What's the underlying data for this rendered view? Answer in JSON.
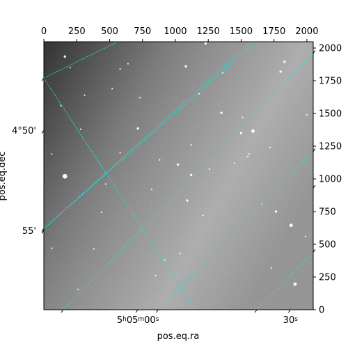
{
  "chart_data": {
    "type": "image",
    "image_kind": "grayscale astronomical sky image with equatorial coordinate grid overlay",
    "colors": {
      "grid": "#17e6d8",
      "background_low": "#303030",
      "background_high": "#b4b4b4",
      "frame": "#000000"
    },
    "pixel_axes": {
      "x_ticks": [
        0,
        250,
        500,
        750,
        1000,
        1250,
        1500,
        1750,
        2000
      ],
      "x_tick_labels": [
        "0",
        "250",
        "500",
        "750",
        "1000",
        "1250",
        "1500",
        "1750",
        "2000"
      ],
      "y_ticks": [
        0,
        250,
        500,
        750,
        1000,
        1250,
        1500,
        1750,
        2000
      ],
      "y_tick_labels": [
        "0",
        "250",
        "500",
        "750",
        "1000",
        "1250",
        "1500",
        "1750",
        "2000"
      ],
      "xlim": [
        0,
        2048
      ],
      "ylim": [
        0,
        2048
      ]
    },
    "world_axes": {
      "xlabel": "pos.eq.ra",
      "ylabel": "pos.eq.dec",
      "ra_tick_labels": [
        {
          "h": "5",
          "m": "05",
          "s": "00",
          "pix_x": 715
        },
        {
          "h": "",
          "m": "",
          "s": "30",
          "pix_x": 1875
        }
      ],
      "dec_tick_labels": [
        {
          "text": "4°50'",
          "pix_y": 1370
        },
        {
          "text": "55'",
          "pix_y": 605
        }
      ]
    },
    "grid_lines": {
      "ra_lines": [
        [
          [
            148,
            0
          ],
          [
            2048,
            1960
          ]
        ],
        [
          [
            870,
            0
          ],
          [
            2048,
            1210
          ]
        ],
        [
          [
            1620,
            0
          ],
          [
            2048,
            440
          ]
        ]
      ],
      "dec_lines": [
        [
          [
            0,
            1770
          ],
          [
            1150,
            0
          ]
        ],
        [
          [
            0,
            620
          ],
          [
            1620,
            2048
          ]
        ],
        [
          [
            0,
            1770
          ],
          [
            560,
            2048
          ]
        ],
        [
          [
            0,
            620
          ],
          [
            1580,
            2048
          ]
        ]
      ]
    },
    "stars": [
      {
        "x": 160,
        "y": 1020,
        "mag": 5
      },
      {
        "x": 1590,
        "y": 1365,
        "mag": 3
      },
      {
        "x": 1880,
        "y": 645,
        "mag": 3
      },
      {
        "x": 1910,
        "y": 195,
        "mag": 3
      },
      {
        "x": 1350,
        "y": 1505,
        "mag": 2
      },
      {
        "x": 1080,
        "y": 1860,
        "mag": 2
      },
      {
        "x": 1120,
        "y": 1030,
        "mag": 2
      },
      {
        "x": 1090,
        "y": 835,
        "mag": 2
      },
      {
        "x": 1765,
        "y": 750,
        "mag": 2
      },
      {
        "x": 1020,
        "y": 1110,
        "mag": 2
      },
      {
        "x": 160,
        "y": 1935,
        "mag": 2
      },
      {
        "x": 715,
        "y": 1385,
        "mag": 2
      },
      {
        "x": 1500,
        "y": 1350,
        "mag": 2
      },
      {
        "x": 1230,
        "y": 2035,
        "mag": 2
      },
      {
        "x": 1800,
        "y": 1820,
        "mag": 2
      },
      {
        "x": 1830,
        "y": 1895,
        "mag": 2
      },
      {
        "x": 730,
        "y": 1620,
        "mag": 1
      },
      {
        "x": 640,
        "y": 1880,
        "mag": 1
      },
      {
        "x": 1550,
        "y": 1170,
        "mag": 1
      },
      {
        "x": 440,
        "y": 745,
        "mag": 1
      },
      {
        "x": 380,
        "y": 465,
        "mag": 1
      },
      {
        "x": 260,
        "y": 155,
        "mag": 1
      },
      {
        "x": 1260,
        "y": 1075,
        "mag": 1
      },
      {
        "x": 1360,
        "y": 1810,
        "mag": 1
      },
      {
        "x": 520,
        "y": 1690,
        "mag": 1
      },
      {
        "x": 880,
        "y": 1145,
        "mag": 1
      },
      {
        "x": 1035,
        "y": 430,
        "mag": 1
      },
      {
        "x": 1450,
        "y": 1120,
        "mag": 1
      },
      {
        "x": 60,
        "y": 1190,
        "mag": 1
      },
      {
        "x": 1560,
        "y": 1190,
        "mag": 1
      },
      {
        "x": 310,
        "y": 1640,
        "mag": 1
      },
      {
        "x": 1120,
        "y": 1260,
        "mag": 1
      },
      {
        "x": 1660,
        "y": 810,
        "mag": 1
      },
      {
        "x": 920,
        "y": 380,
        "mag": 1
      },
      {
        "x": 1180,
        "y": 1650,
        "mag": 1
      },
      {
        "x": 580,
        "y": 1840,
        "mag": 1
      },
      {
        "x": 1730,
        "y": 320,
        "mag": 1
      },
      {
        "x": 850,
        "y": 260,
        "mag": 1
      },
      {
        "x": 130,
        "y": 1560,
        "mag": 1
      },
      {
        "x": 470,
        "y": 960,
        "mag": 1
      },
      {
        "x": 2000,
        "y": 1490,
        "mag": 1
      },
      {
        "x": 1510,
        "y": 1470,
        "mag": 1
      },
      {
        "x": 60,
        "y": 470,
        "mag": 1
      },
      {
        "x": 820,
        "y": 920,
        "mag": 1
      },
      {
        "x": 1720,
        "y": 1240,
        "mag": 1
      },
      {
        "x": 200,
        "y": 1850,
        "mag": 1
      },
      {
        "x": 1210,
        "y": 720,
        "mag": 1
      },
      {
        "x": 580,
        "y": 1200,
        "mag": 1
      },
      {
        "x": 1990,
        "y": 560,
        "mag": 1
      },
      {
        "x": 280,
        "y": 1380,
        "mag": 1
      }
    ]
  }
}
